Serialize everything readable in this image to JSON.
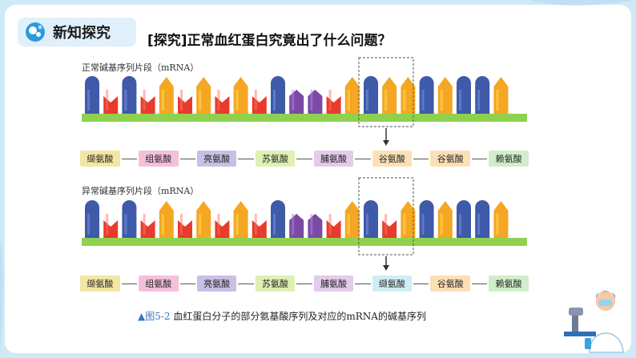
{
  "header": {
    "badge_label": "新知探究",
    "title": "[探究]正常血红蛋白究竟出了什么问题？"
  },
  "normal": {
    "label": "正常碱基序列片段（mRNA）",
    "bases": [
      "A",
      "U",
      "A",
      "U",
      "G",
      "U",
      "G",
      "U",
      "G",
      "U",
      "A",
      "C",
      "C",
      "U",
      "G",
      "A",
      "G",
      "G",
      "A",
      "G",
      "A",
      "A",
      "G"
    ],
    "amino_acids": [
      {
        "name": "缬氨酸",
        "color": "#f3e7a3"
      },
      {
        "name": "组氨酸",
        "color": "#f4c0dc"
      },
      {
        "name": "亮氨酸",
        "color": "#c9bfe6"
      },
      {
        "name": "苏氨酸",
        "color": "#dff0b3"
      },
      {
        "name": "脯氨酸",
        "color": "#e3cbe9"
      },
      {
        "name": "谷氨酸",
        "color": "#fde0b6"
      },
      {
        "name": "谷氨酸",
        "color": "#fde0b6"
      },
      {
        "name": "赖氨酸",
        "color": "#cfeec9"
      }
    ]
  },
  "abnormal": {
    "label": "异常碱基序列片段（mRNA）",
    "bases": [
      "A",
      "U",
      "A",
      "U",
      "G",
      "U",
      "G",
      "U",
      "G",
      "U",
      "A",
      "C",
      "C",
      "U",
      "G",
      "A",
      "U",
      "G",
      "A",
      "G",
      "A",
      "A",
      "G"
    ],
    "amino_acids": [
      {
        "name": "缬氨酸",
        "color": "#f3e7a3"
      },
      {
        "name": "组氨酸",
        "color": "#f4c0dc"
      },
      {
        "name": "亮氨酸",
        "color": "#c9bfe6"
      },
      {
        "name": "苏氨酸",
        "color": "#dff0b3"
      },
      {
        "name": "脯氨酸",
        "color": "#e3cbe9"
      },
      {
        "name": "缬氨酸",
        "color": "#cfeef3"
      },
      {
        "name": "谷氨酸",
        "color": "#fde0b6"
      },
      {
        "name": "赖氨酸",
        "color": "#cfeec9"
      }
    ]
  },
  "base_colors": {
    "A": "#3f5aa8",
    "U": "#e83b2c",
    "G": "#f5a623",
    "C": "#7b4aa6",
    "backbone": "#8fd14f"
  },
  "caption": {
    "figure": "▲图5-2",
    "text": "血红蛋白分子的部分氨基酸序列及对应的mRNA的碱基序列"
  }
}
